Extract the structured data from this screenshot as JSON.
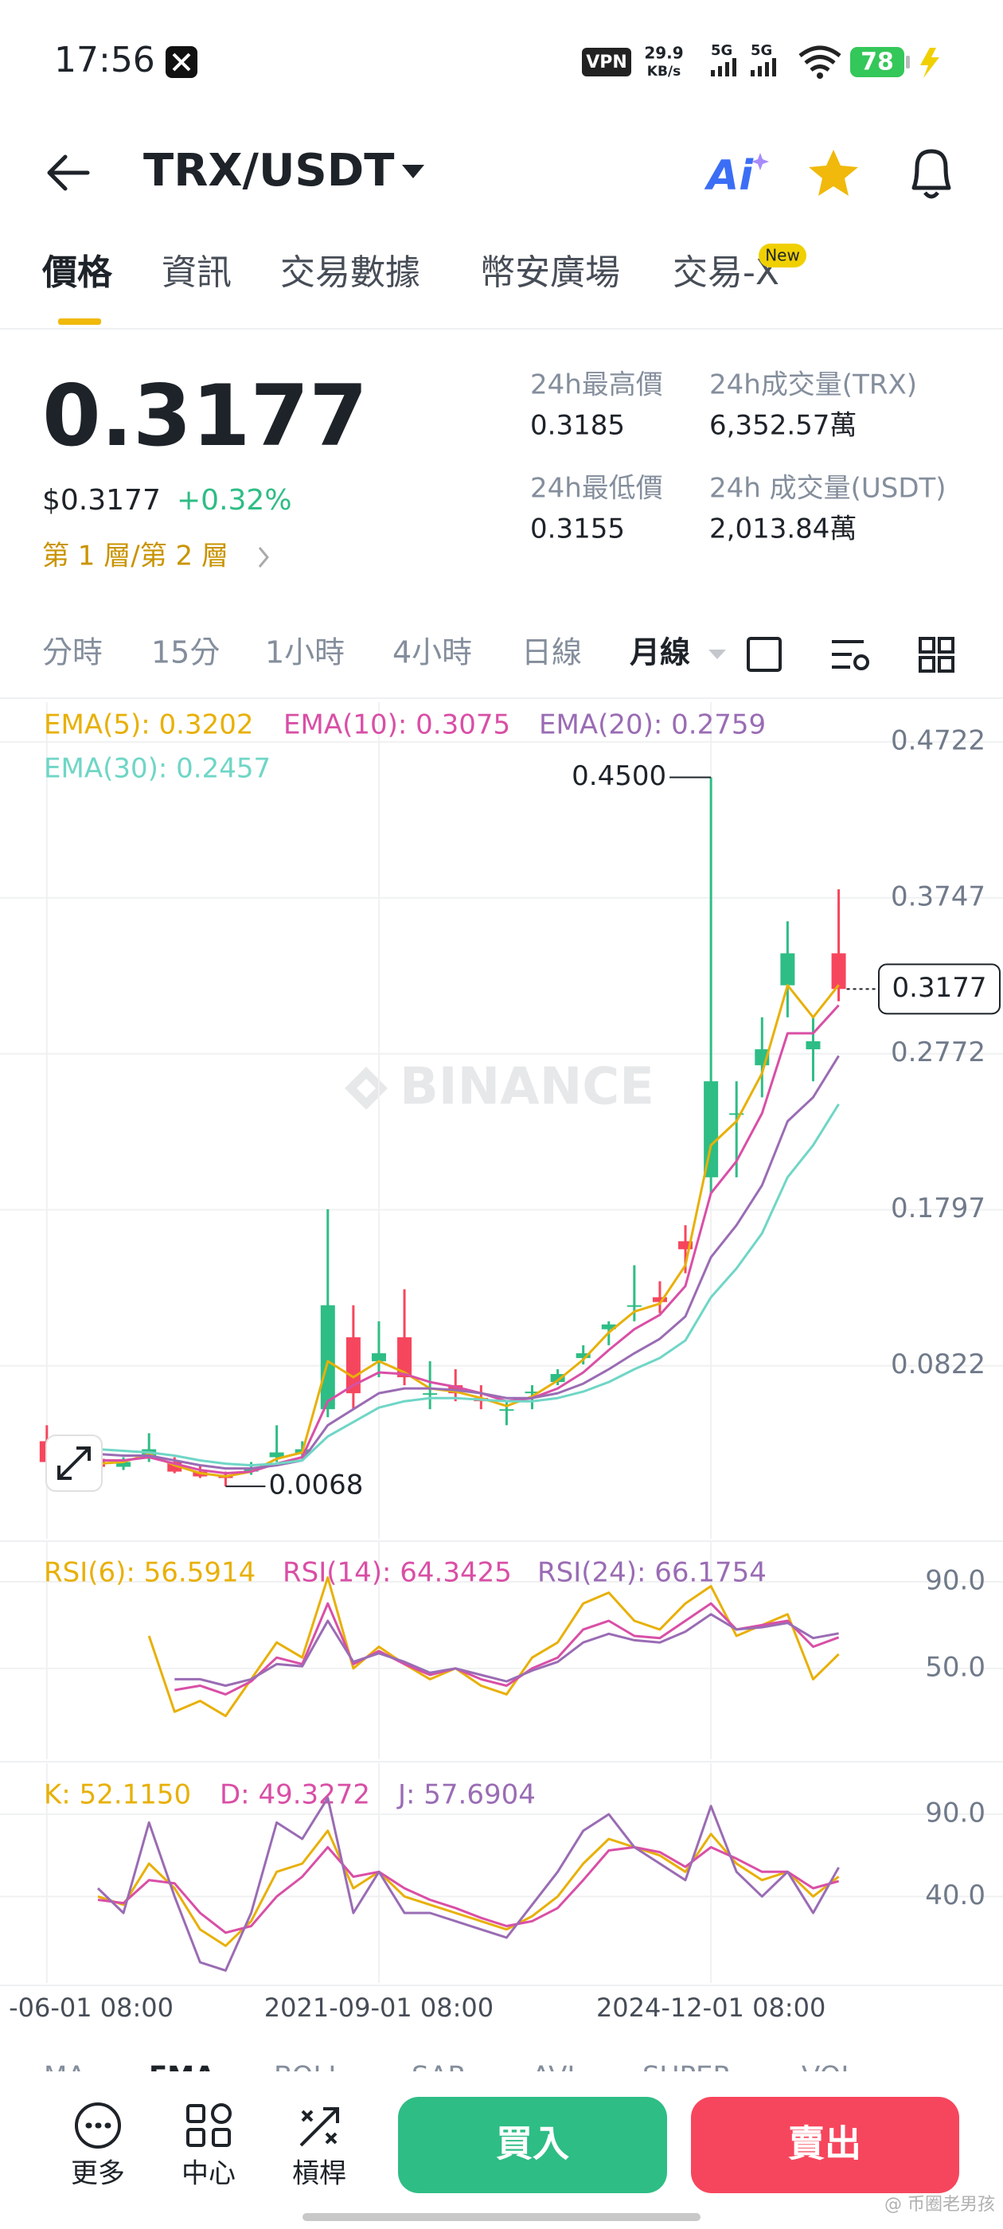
{
  "status_bar": {
    "time": "17:56",
    "network": "VPN",
    "speed": "29.9",
    "speed_unit": "KB/s",
    "signal_1": "5G",
    "signal_2": "5G",
    "battery": "78"
  },
  "header": {
    "pair": "TRX/USDT",
    "ai": "Ai"
  },
  "tabs": [
    "價格",
    "資訊",
    "交易數據",
    "幣安廣場",
    "交易-X"
  ],
  "tab_badge": "New",
  "ticker": {
    "price": "0.3177",
    "usd_price": "$0.3177",
    "change": "+0.32%",
    "layer_link": "第 1 層/第 2 層",
    "stats": [
      {
        "label": "24h最高價",
        "value": "0.3185"
      },
      {
        "label": "24h成交量(TRX)",
        "value": "6,352.57萬"
      },
      {
        "label": "24h最低價",
        "value": "0.3155"
      },
      {
        "label": "24h 成交量(USDT)",
        "value": "2,013.84萬"
      }
    ]
  },
  "intervals": [
    "分時",
    "15分",
    "1小時",
    "4小時",
    "日線",
    "月線"
  ],
  "chart_data": [
    {
      "type": "candlestick",
      "watermark": "BINANCE",
      "x": [
        0,
        3,
        6,
        9,
        12,
        15,
        18,
        21,
        24,
        27,
        30,
        33,
        36,
        39,
        42,
        45,
        48,
        51,
        54,
        57,
        60,
        63,
        66,
        69,
        72,
        75,
        78,
        81,
        84,
        87,
        90,
        93
      ],
      "candles": {
        "open": [
          0.035,
          0.022,
          0.024,
          0.019,
          0.024,
          0.022,
          0.016,
          0.014,
          0.016,
          0.025,
          0.027,
          0.055,
          0.1,
          0.085,
          0.1,
          0.065,
          0.07,
          0.062,
          0.055,
          0.065,
          0.072,
          0.087,
          0.105,
          0.12,
          0.125,
          0.16,
          0.2,
          0.24,
          0.27,
          0.32,
          0.28,
          0.34
        ],
        "high": [
          0.045,
          0.03,
          0.028,
          0.025,
          0.04,
          0.025,
          0.02,
          0.016,
          0.022,
          0.045,
          0.035,
          0.18,
          0.12,
          0.11,
          0.13,
          0.085,
          0.08,
          0.07,
          0.06,
          0.07,
          0.08,
          0.095,
          0.11,
          0.145,
          0.135,
          0.17,
          0.45,
          0.26,
          0.3,
          0.36,
          0.3,
          0.38
        ],
        "low": [
          0.02,
          0.018,
          0.016,
          0.017,
          0.022,
          0.015,
          0.012,
          0.0068,
          0.014,
          0.022,
          0.024,
          0.05,
          0.055,
          0.075,
          0.07,
          0.055,
          0.06,
          0.055,
          0.045,
          0.055,
          0.07,
          0.083,
          0.095,
          0.11,
          0.115,
          0.14,
          0.19,
          0.2,
          0.25,
          0.3,
          0.26,
          0.31
        ],
        "close": [
          0.022,
          0.024,
          0.019,
          0.022,
          0.03,
          0.016,
          0.013,
          0.012,
          0.018,
          0.028,
          0.03,
          0.12,
          0.065,
          0.09,
          0.075,
          0.065,
          0.065,
          0.06,
          0.055,
          0.066,
          0.077,
          0.09,
          0.108,
          0.12,
          0.122,
          0.155,
          0.26,
          0.24,
          0.28,
          0.34,
          0.285,
          0.3177
        ]
      },
      "up_color": "#2ebd85",
      "down_color": "#f6465d",
      "annotations": [
        "0.4500",
        "0.0068"
      ],
      "series": [
        {
          "name": "EMA(5): 0.3202",
          "color": "#e8b007",
          "values": [
            0.025,
            0.024,
            0.021,
            0.022,
            0.027,
            0.02,
            0.015,
            0.013,
            0.016,
            0.024,
            0.028,
            0.085,
            0.075,
            0.085,
            0.078,
            0.068,
            0.066,
            0.062,
            0.057,
            0.063,
            0.073,
            0.086,
            0.103,
            0.116,
            0.121,
            0.145,
            0.22,
            0.235,
            0.265,
            0.32,
            0.3,
            0.3202
          ]
        },
        {
          "name": "EMA(10): 0.3075",
          "color": "#d94fa6",
          "values": [
            0.028,
            0.026,
            0.023,
            0.023,
            0.025,
            0.021,
            0.017,
            0.015,
            0.016,
            0.021,
            0.025,
            0.06,
            0.07,
            0.078,
            0.077,
            0.072,
            0.069,
            0.065,
            0.06,
            0.062,
            0.068,
            0.078,
            0.092,
            0.105,
            0.114,
            0.132,
            0.19,
            0.21,
            0.24,
            0.29,
            0.29,
            0.3075
          ]
        },
        {
          "name": "EMA(20): 0.2759",
          "color": "#9a6cb4",
          "values": [
            0.032,
            0.03,
            0.027,
            0.026,
            0.026,
            0.023,
            0.02,
            0.018,
            0.018,
            0.02,
            0.023,
            0.045,
            0.055,
            0.065,
            0.068,
            0.068,
            0.067,
            0.065,
            0.062,
            0.062,
            0.065,
            0.071,
            0.08,
            0.09,
            0.099,
            0.113,
            0.15,
            0.17,
            0.195,
            0.235,
            0.25,
            0.2759
          ]
        },
        {
          "name": "EMA(30): 0.2457",
          "color": "#6fd6c6",
          "values": [
            0.035,
            0.033,
            0.03,
            0.029,
            0.028,
            0.026,
            0.023,
            0.021,
            0.02,
            0.021,
            0.023,
            0.038,
            0.047,
            0.056,
            0.06,
            0.062,
            0.062,
            0.061,
            0.06,
            0.06,
            0.062,
            0.066,
            0.072,
            0.08,
            0.087,
            0.098,
            0.125,
            0.143,
            0.165,
            0.2,
            0.22,
            0.2457
          ]
        }
      ],
      "xlim": [
        -5.5,
        112.3
      ],
      "xticks": [
        {
          "value": 0,
          "label": "-06-01 08:00"
        },
        {
          "value": 39,
          "label": "2021-09-01 08:00"
        },
        {
          "value": 78,
          "label": "2024-12-01 08:00"
        }
      ],
      "ylim": [
        -0.026,
        0.497
      ],
      "yticks": [
        0.4722,
        0.3747,
        0.2772,
        0.1797,
        0.0822
      ],
      "grid": true
    },
    {
      "type": "line",
      "series": [
        {
          "name": "RSI(6): 56.5914",
          "color": "#e8b007",
          "values": [
            null,
            null,
            null,
            null,
            65,
            30,
            35,
            28,
            45,
            62,
            55,
            92,
            50,
            60,
            52,
            45,
            50,
            42,
            38,
            55,
            62,
            80,
            85,
            72,
            68,
            80,
            88,
            65,
            70,
            75,
            45,
            56.5914
          ]
        },
        {
          "name": "RSI(14): 64.3425",
          "color": "#d94fa6",
          "values": [
            null,
            null,
            null,
            null,
            null,
            40,
            42,
            38,
            44,
            55,
            52,
            80,
            52,
            58,
            52,
            47,
            50,
            45,
            42,
            50,
            55,
            68,
            72,
            65,
            64,
            72,
            80,
            68,
            70,
            72,
            60,
            64.3425
          ]
        },
        {
          "name": "RSI(24): 66.1754",
          "color": "#9a6cb4",
          "values": [
            null,
            null,
            null,
            null,
            null,
            45,
            45,
            42,
            45,
            52,
            51,
            72,
            53,
            57,
            53,
            48,
            50,
            47,
            44,
            49,
            53,
            62,
            66,
            63,
            62,
            67,
            75,
            68,
            69,
            71,
            64,
            66.1754
          ]
        }
      ],
      "ylim": [
        8,
        108.4
      ],
      "yticks": [
        {
          "value": 90,
          "label": "90.0"
        },
        {
          "value": 50,
          "label": "50.0"
        }
      ],
      "grid": true
    },
    {
      "type": "line",
      "series": [
        {
          "name": "K: 52.1150",
          "color": "#e8b007",
          "values": [
            null,
            null,
            40,
            35,
            60,
            45,
            20,
            10,
            25,
            55,
            60,
            80,
            45,
            55,
            40,
            35,
            30,
            25,
            20,
            28,
            40,
            60,
            75,
            70,
            65,
            55,
            78,
            60,
            50,
            55,
            40,
            52.115
          ]
        },
        {
          "name": "D: 49.3272",
          "color": "#d94fa6",
          "values": [
            null,
            null,
            38,
            36,
            50,
            48,
            30,
            18,
            22,
            40,
            52,
            70,
            52,
            55,
            45,
            38,
            33,
            27,
            22,
            25,
            33,
            50,
            68,
            70,
            67,
            58,
            70,
            63,
            55,
            55,
            45,
            49.3272
          ]
        },
        {
          "name": "J: 57.6904",
          "color": "#9a6cb4",
          "values": [
            null,
            null,
            45,
            30,
            85,
            40,
            0,
            -5,
            30,
            85,
            75,
            100,
            30,
            55,
            30,
            30,
            25,
            20,
            15,
            35,
            55,
            80,
            90,
            70,
            60,
            50,
            95,
            55,
            40,
            55,
            30,
            57.6904
          ]
        }
      ],
      "ylim": [
        -12.6,
        121
      ],
      "yticks": [
        {
          "value": 90,
          "label": "90.0"
        },
        {
          "value": 40,
          "label": "40.0"
        }
      ],
      "grid": true
    }
  ],
  "indicator_tabs": [
    "MA",
    "EMA",
    "BOLL",
    "SAR",
    "AVL",
    "SUPER",
    "VOL"
  ],
  "bottom_bar": {
    "actions": [
      "更多",
      "中心",
      "槓桿"
    ],
    "buy": "買入",
    "sell": "賣出"
  },
  "watermark": "@ 币圈老男孩"
}
